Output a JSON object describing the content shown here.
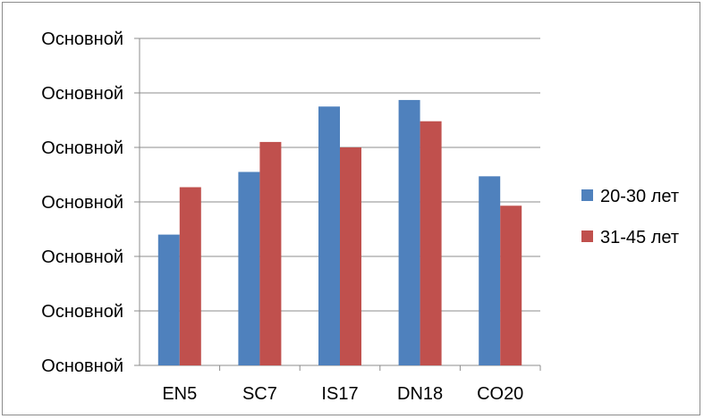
{
  "chart_data": {
    "type": "bar",
    "categories": [
      "EN5",
      "SC7",
      "IS17",
      "DN18",
      "CO20"
    ],
    "series": [
      {
        "name": "20-30 лет",
        "color": "#4f81bd",
        "values": [
          2.4,
          3.55,
          4.75,
          4.87,
          3.47
        ]
      },
      {
        "name": "31-45 лет",
        "color": "#c0504d",
        "values": [
          3.27,
          4.1,
          4.0,
          4.48,
          2.93
        ]
      }
    ],
    "ylim": [
      0,
      6
    ],
    "y_tick_labels": [
      "Основной",
      "Основной",
      "Основной",
      "Основной",
      "Основной",
      "Основной",
      "Основной"
    ],
    "grid": true,
    "legend_position": "right"
  }
}
